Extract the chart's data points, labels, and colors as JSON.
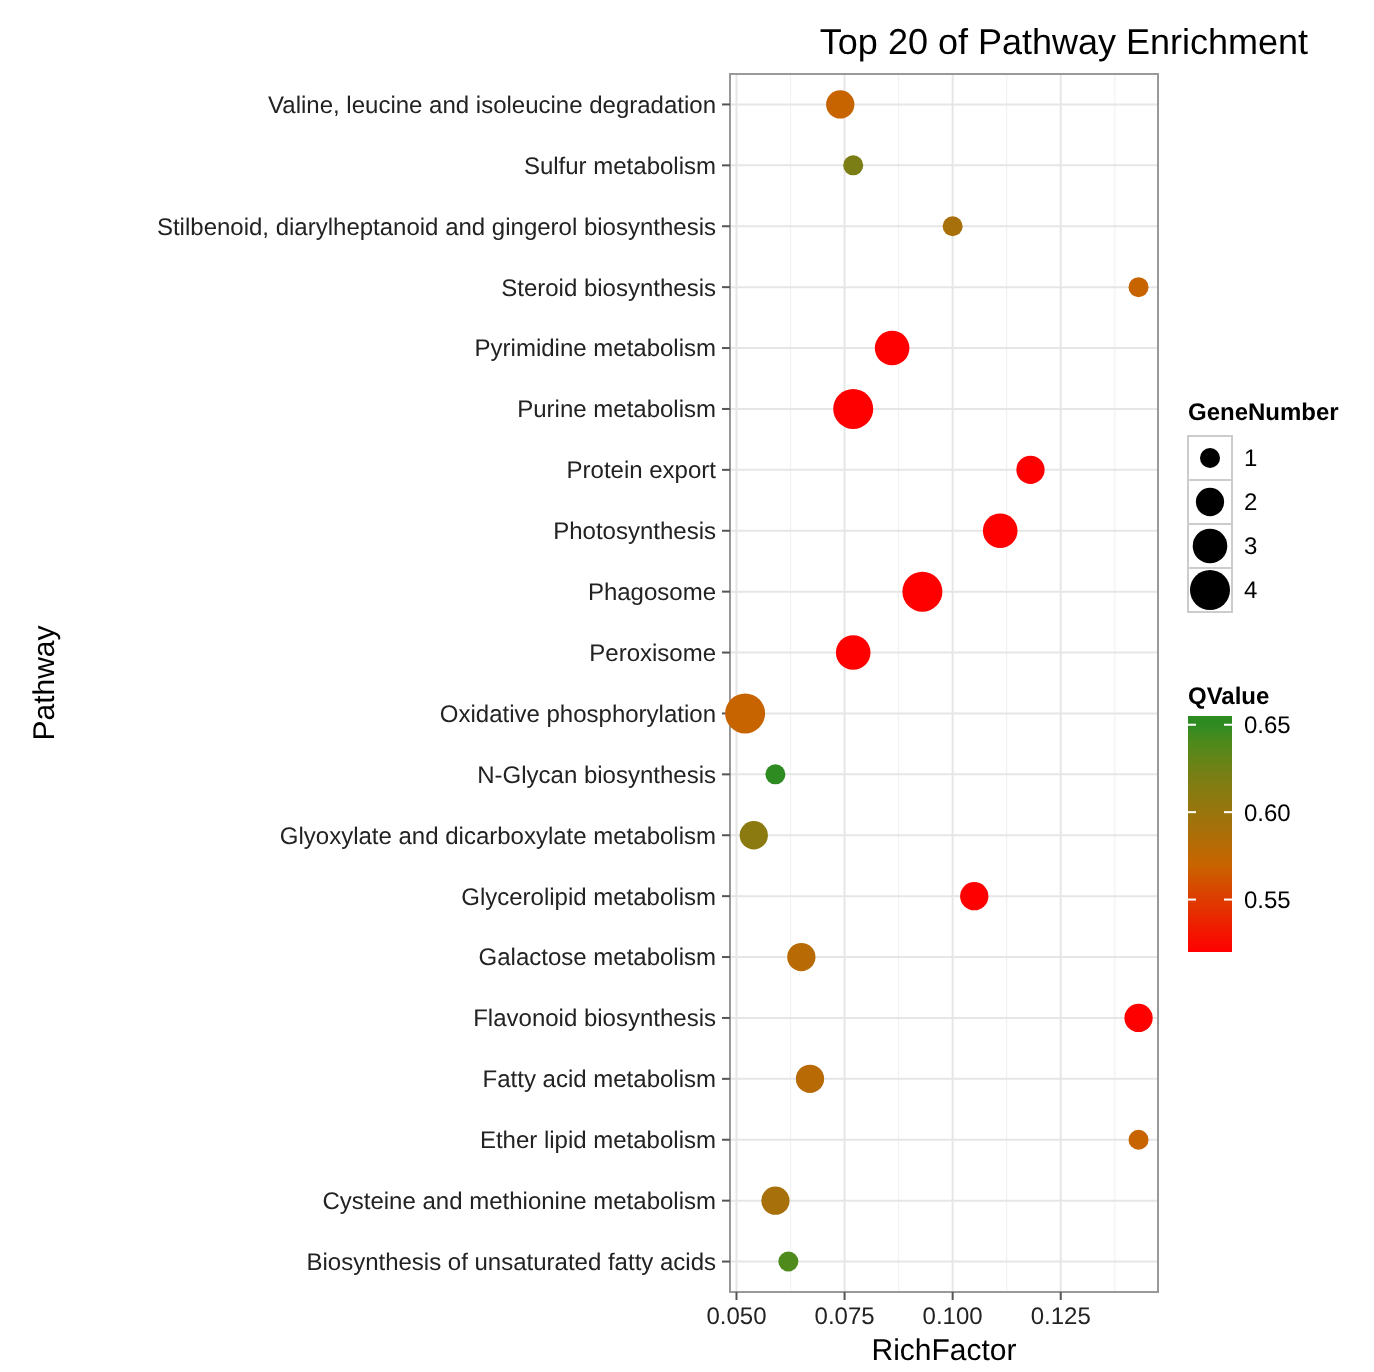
{
  "chart_data": {
    "type": "bubble",
    "orientation": "horizontal",
    "title": "Top 20 of Pathway Enrichment",
    "xlabel": "RichFactor",
    "ylabel": "Pathway",
    "legend_title": "GeneNumber",
    "clabel": "QValue",
    "categories": [
      "Valine, leucine and isoleucine degradation",
      "Sulfur metabolism",
      "Stilbenoid, diarylheptanoid and gingerol biosynthesis",
      "Steroid biosynthesis",
      "Pyrimidine metabolism",
      "Purine metabolism",
      "Protein export",
      "Photosynthesis",
      "Phagosome",
      "Peroxisome",
      "Oxidative phosphorylation",
      "N-Glycan biosynthesis",
      "Glyoxylate and dicarboxylate metabolism",
      "Glycerolipid metabolism",
      "Galactose metabolism",
      "Flavonoid biosynthesis",
      "Fatty acid metabolism",
      "Ether lipid metabolism",
      "Cysteine and methionine metabolism",
      "Biosynthesis of unsaturated fatty acids"
    ],
    "values": [
      0.074,
      0.077,
      0.1,
      0.143,
      0.086,
      0.077,
      0.118,
      0.111,
      0.093,
      0.077,
      0.052,
      0.059,
      0.054,
      0.105,
      0.065,
      0.143,
      0.067,
      0.143,
      0.059,
      0.062
    ],
    "sizes": [
      2,
      1,
      1,
      1,
      3,
      4,
      2,
      3,
      4,
      3,
      4,
      1,
      2,
      2,
      2,
      2,
      2,
      1,
      2,
      1
    ],
    "size_legend": [
      1,
      2,
      3,
      4
    ],
    "cvalues": [
      0.57,
      0.62,
      0.59,
      0.57,
      0.52,
      0.52,
      0.52,
      0.52,
      0.52,
      0.52,
      0.57,
      0.65,
      0.61,
      0.52,
      0.58,
      0.52,
      0.58,
      0.57,
      0.59,
      0.64
    ],
    "clim": [
      0.52,
      0.655
    ],
    "cticks": [
      0.55,
      {
        "value": 0.6,
        "label": "0.60"
      },
      0.65
    ],
    "colors": [
      "#c86400",
      "#7a7e14",
      "#a8700a",
      "#c86400",
      "#ff0000",
      "#ff0000",
      "#ff0000",
      "#ff0000",
      "#ff0000",
      "#ff0000",
      "#c86400",
      "#2e8b22",
      "#8a7a10",
      "#ff0000",
      "#b86a05",
      "#ff0000",
      "#b86a05",
      "#c86400",
      "#a8700a",
      "#4e8a1c"
    ],
    "xlim": [
      0.0485,
      0.1475
    ],
    "xticks": [
      {
        "value": 0.05,
        "label": "0.050"
      },
      0.075,
      {
        "value": 0.1,
        "label": "0.100"
      },
      0.125
    ],
    "grid": true
  }
}
